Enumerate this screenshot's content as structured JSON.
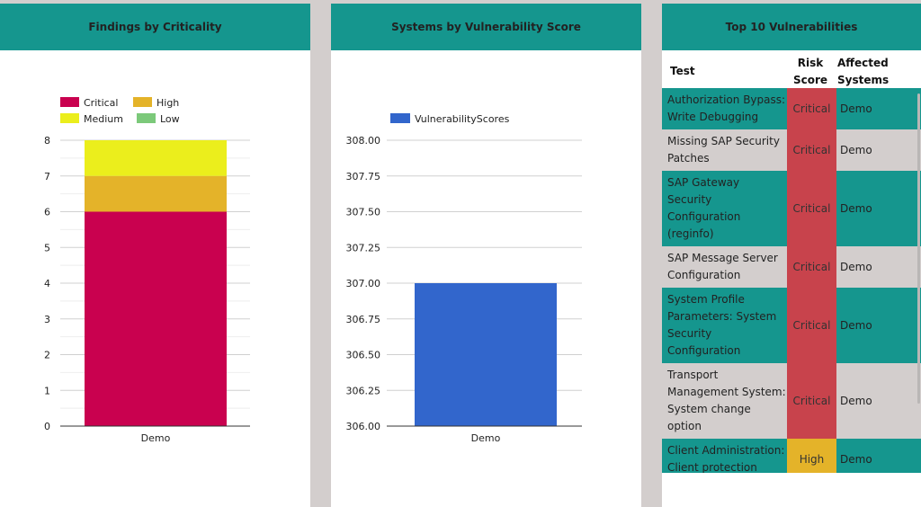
{
  "colors": {
    "header": "#15968e",
    "critical": "#c9014f",
    "high": "#e4b329",
    "medium": "#ebee1c",
    "low": "#7cc97a",
    "blue": "#3266cc",
    "row_teal": "#15968e",
    "row_gray": "#d3cecd",
    "risk_critical": "#c8434c",
    "risk_high": "#e4b329"
  },
  "panels": {
    "criticality": {
      "title": "Findings by Criticality"
    },
    "vuln_score": {
      "title": "Systems by Vulnerability Score"
    },
    "top10": {
      "title": "Top 10 Vulnerabilities"
    }
  },
  "chart_data": [
    {
      "type": "bar",
      "stacked": true,
      "title": "Findings by Criticality",
      "categories": [
        "Demo"
      ],
      "series": [
        {
          "name": "Critical",
          "values": [
            6
          ],
          "color": "#c9014f"
        },
        {
          "name": "High",
          "values": [
            1
          ],
          "color": "#e4b329"
        },
        {
          "name": "Medium",
          "values": [
            1
          ],
          "color": "#ebee1c"
        },
        {
          "name": "Low",
          "values": [
            0
          ],
          "color": "#7cc97a"
        }
      ],
      "ylim": [
        0,
        8
      ],
      "yticks": [
        "0",
        "1",
        "2",
        "3",
        "4",
        "5",
        "6",
        "7",
        "8"
      ],
      "legend": "top"
    },
    {
      "type": "bar",
      "title": "Systems by Vulnerability Score",
      "categories": [
        "Demo"
      ],
      "series": [
        {
          "name": "VulnerabilityScores",
          "values": [
            307
          ],
          "color": "#3266cc"
        }
      ],
      "ylim": [
        306,
        308
      ],
      "yticks": [
        "306.00",
        "306.25",
        "306.50",
        "306.75",
        "307.00",
        "307.25",
        "307.50",
        "307.75",
        "308.00"
      ],
      "legend": "top"
    },
    {
      "type": "table",
      "title": "Top 10 Vulnerabilities",
      "columns": [
        "Test",
        "Risk Score",
        "Affected Systems"
      ],
      "rows": [
        {
          "test": [
            "Authorization Bypass:",
            "Write Debugging"
          ],
          "risk": "Critical",
          "systems": "Demo"
        },
        {
          "test": [
            "Missing SAP Security",
            "Patches"
          ],
          "risk": "Critical",
          "systems": "Demo"
        },
        {
          "test": [
            "SAP Gateway",
            "Security",
            "Configuration",
            "(reginfo)"
          ],
          "risk": "Critical",
          "systems": "Demo"
        },
        {
          "test": [
            "SAP Message Server",
            "Configuration"
          ],
          "risk": "Critical",
          "systems": "Demo"
        },
        {
          "test": [
            "System Profile",
            "Parameters: System",
            "Security",
            "Configuration"
          ],
          "risk": "Critical",
          "systems": "Demo"
        },
        {
          "test": [
            "Transport",
            "Management System:",
            "System change",
            "option"
          ],
          "risk": "Critical",
          "systems": "Demo"
        },
        {
          "test": [
            "Client Administration:",
            "Client protection"
          ],
          "risk": "High",
          "systems": "Demo"
        }
      ]
    }
  ]
}
